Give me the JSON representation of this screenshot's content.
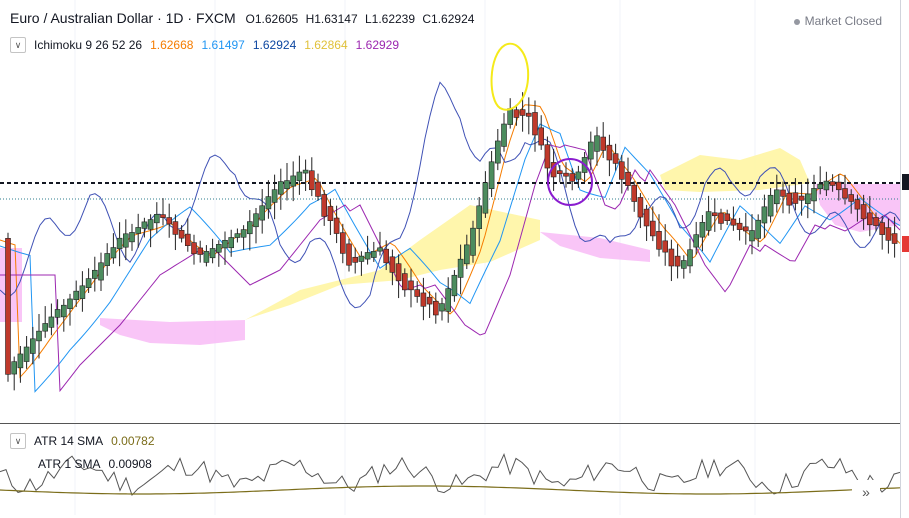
{
  "header": {
    "symbol_title": "Euro / Australian Dollar · 1D · FXCM",
    "open": "O1.62605",
    "high": "H1.63147",
    "low": "L1.62239",
    "close": "C1.62924",
    "market_status": "Market Closed"
  },
  "ichimoku": {
    "name": "Ichimoku 9 26 52 26",
    "values": [
      "1.62668",
      "1.61497",
      "1.62924",
      "1.62864",
      "1.62929"
    ],
    "colors": [
      "#f57c00",
      "#2196f3",
      "#0d47a1",
      "#f9d849",
      "#9c27b0"
    ]
  },
  "atr14": {
    "name": "ATR 14 SMA",
    "value": "0.00782",
    "color": "#7b6d1a"
  },
  "atr1": {
    "name": "ATR 1 SMA",
    "value": "0.00908",
    "color": "#555555"
  },
  "colors": {
    "up_candle": "#4c8c5e",
    "down_candle": "#c0392b",
    "tenkan": "#f57c00",
    "kijun": "#2196f3",
    "chikou": "#3f51b5",
    "cloud_bull": "#fff59d",
    "cloud_bear": "#f8bbf6",
    "annotation_yellow": "#f5ea1a",
    "annotation_purple": "#8a1ccf"
  },
  "icons": {
    "collapse": "chevron-icon",
    "scroll_right": "double-chevron-right-icon"
  },
  "scroll_label": "»"
}
